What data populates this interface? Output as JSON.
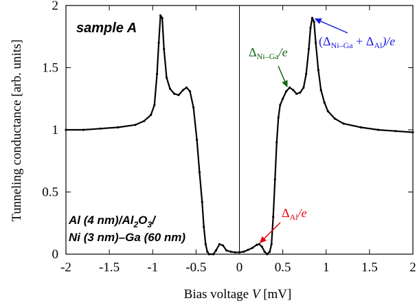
{
  "chart_data": {
    "type": "line",
    "xlabel_prefix": "Bias voltage ",
    "xlabel_var": "V",
    "xlabel_unit": " [mV]",
    "ylabel": "Tunneling conductance [arb. units]",
    "xlim": [
      -2,
      2
    ],
    "ylim": [
      0,
      2
    ],
    "x_ticks": [
      -2,
      -1.5,
      -1,
      -0.5,
      0,
      0.5,
      1,
      1.5,
      2
    ],
    "x_tick_labels": [
      "-2",
      "-1.5",
      "-1",
      "-0.5",
      "0",
      "0.5",
      "1",
      "1.5",
      "2"
    ],
    "y_ticks": [
      0,
      0.5,
      1,
      1.5,
      2
    ],
    "y_tick_labels": [
      "0",
      "0.5",
      "1",
      "1.5",
      "2"
    ],
    "grid": false,
    "sample_label": "sample A",
    "structure_label": [
      "Al (4 nm)/Al",
      "2",
      "O",
      "3",
      "/",
      "Ni (3 nm)–Ga (60 nm)"
    ],
    "annotations": {
      "al_gap": {
        "delta": "Δ",
        "sub": "Al",
        "suffix": "/e",
        "color": "#e8000b",
        "x": 0.22,
        "y": 0.08
      },
      "niga_gap": {
        "delta": "Δ",
        "sub": "Ni–Ga",
        "suffix": "/e",
        "color": "#116611",
        "x": 0.56,
        "y": 1.33
      },
      "sum_gap": {
        "open": "(Δ",
        "sub1": "Ni–Ga",
        "plus": " + Δ",
        "sub2": "Al",
        "close": ")/e",
        "color": "#1a1ae6",
        "x": 0.85,
        "y": 1.9
      }
    },
    "series": [
      {
        "color": "#000000",
        "points": [
          [
            -2.0,
            1.0
          ],
          [
            -1.8,
            1.0
          ],
          [
            -1.6,
            1.01
          ],
          [
            -1.4,
            1.02
          ],
          [
            -1.2,
            1.04
          ],
          [
            -1.1,
            1.07
          ],
          [
            -1.02,
            1.12
          ],
          [
            -0.98,
            1.2
          ],
          [
            -0.95,
            1.45
          ],
          [
            -0.93,
            1.7
          ],
          [
            -0.91,
            1.92
          ],
          [
            -0.89,
            1.9
          ],
          [
            -0.87,
            1.65
          ],
          [
            -0.84,
            1.42
          ],
          [
            -0.8,
            1.33
          ],
          [
            -0.75,
            1.29
          ],
          [
            -0.7,
            1.28
          ],
          [
            -0.65,
            1.32
          ],
          [
            -0.61,
            1.34
          ],
          [
            -0.57,
            1.31
          ],
          [
            -0.53,
            1.18
          ],
          [
            -0.49,
            0.92
          ],
          [
            -0.46,
            0.66
          ],
          [
            -0.43,
            0.42
          ],
          [
            -0.41,
            0.22
          ],
          [
            -0.39,
            0.08
          ],
          [
            -0.37,
            0.02
          ],
          [
            -0.35,
            0.0
          ],
          [
            -0.3,
            0.0
          ],
          [
            -0.27,
            0.03
          ],
          [
            -0.23,
            0.08
          ],
          [
            -0.19,
            0.07
          ],
          [
            -0.15,
            0.03
          ],
          [
            -0.1,
            0.02
          ],
          [
            -0.05,
            0.015
          ],
          [
            0.0,
            0.015
          ],
          [
            0.05,
            0.02
          ],
          [
            0.1,
            0.035
          ],
          [
            0.15,
            0.05
          ],
          [
            0.2,
            0.075
          ],
          [
            0.23,
            0.08
          ],
          [
            0.26,
            0.06
          ],
          [
            0.29,
            0.02
          ],
          [
            0.32,
            0.0
          ],
          [
            0.35,
            0.02
          ],
          [
            0.37,
            0.08
          ],
          [
            0.39,
            0.3
          ],
          [
            0.41,
            0.6
          ],
          [
            0.43,
            0.9
          ],
          [
            0.45,
            1.1
          ],
          [
            0.47,
            1.2
          ],
          [
            0.5,
            1.25
          ],
          [
            0.54,
            1.31
          ],
          [
            0.58,
            1.34
          ],
          [
            0.62,
            1.32
          ],
          [
            0.66,
            1.29
          ],
          [
            0.7,
            1.3
          ],
          [
            0.74,
            1.34
          ],
          [
            0.77,
            1.45
          ],
          [
            0.8,
            1.65
          ],
          [
            0.82,
            1.82
          ],
          [
            0.84,
            1.9
          ],
          [
            0.86,
            1.87
          ],
          [
            0.88,
            1.7
          ],
          [
            0.91,
            1.48
          ],
          [
            0.94,
            1.32
          ],
          [
            0.98,
            1.22
          ],
          [
            1.02,
            1.15
          ],
          [
            1.1,
            1.09
          ],
          [
            1.2,
            1.05
          ],
          [
            1.4,
            1.02
          ],
          [
            1.6,
            1.0
          ],
          [
            1.8,
            0.99
          ],
          [
            2.0,
            0.98
          ]
        ]
      }
    ]
  }
}
